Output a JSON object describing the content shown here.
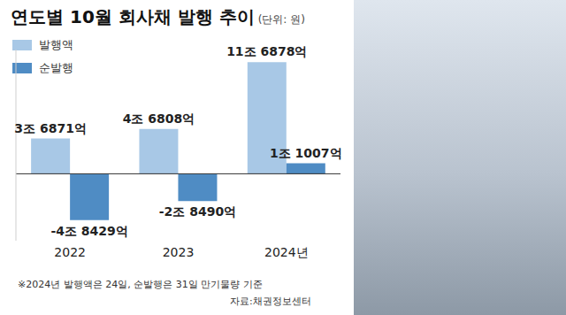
{
  "chart_data": {
    "type": "bar",
    "title": "연도별 10월 회사채 발행 추이",
    "subtitle": "(단위: 원)",
    "categories": [
      "2022",
      "2023",
      "2024년"
    ],
    "series": [
      {
        "name": "발행액",
        "color": "#a8c8e6",
        "values": [
          3687100000000,
          4680800000000,
          11687800000000
        ],
        "value_labels": [
          "3조 6871억",
          "4조 6808억",
          "11조 6878억"
        ]
      },
      {
        "name": "순발행",
        "color": "#4f8cc4",
        "values": [
          -4842900000000,
          -2849000000000,
          1100700000000
        ],
        "value_labels": [
          "-4조 8429억",
          "-2조 8490억",
          "1조 1007억"
        ]
      }
    ],
    "ylim": [
      -7000000000000,
      13000000000000
    ],
    "data_labels": true,
    "tick_labels": "x",
    "legend": "upper left",
    "grid": false,
    "notes": [
      "※2024년 발행액은 24일, 순발행은 31일 만기물량 기준",
      "자료:채권정보센터"
    ]
  }
}
